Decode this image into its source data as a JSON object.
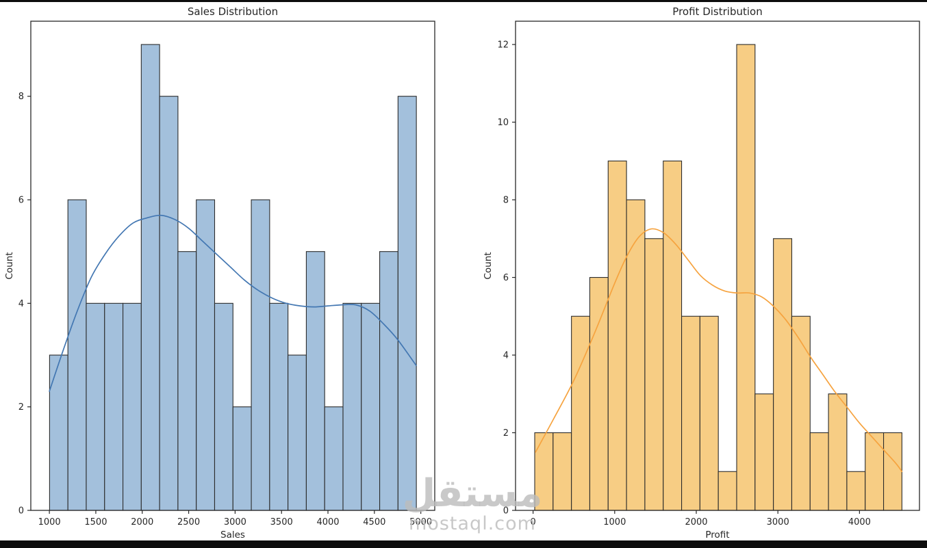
{
  "page": {
    "background": "#ffffff",
    "top_border_color": "#0d0d0d",
    "bottom_border_color": "#0d0d0d",
    "text_color": "#262626",
    "spine_color": "#262626"
  },
  "watermark": {
    "arabic": "مستقل",
    "latin": "mostaql.com",
    "color": "#bbbbbb"
  },
  "chart_data": [
    {
      "type": "bar",
      "subtype": "histogram-with-kde",
      "title": "Sales Distribution",
      "xlabel": "Sales",
      "ylabel": "Count",
      "bar_color": "#a3c0dc",
      "bar_edge_color": "#2b2b2b",
      "kde_color": "#4377b2",
      "bin_start": 1002,
      "bin_width": 197.5,
      "counts": [
        3,
        6,
        4,
        4,
        4,
        9,
        8,
        5,
        6,
        4,
        2,
        6,
        4,
        3,
        5,
        2,
        4,
        4,
        5,
        8
      ],
      "kde_points": [
        [
          1000,
          2.3
        ],
        [
          1150,
          3.1
        ],
        [
          1300,
          3.85
        ],
        [
          1450,
          4.5
        ],
        [
          1600,
          4.95
        ],
        [
          1750,
          5.3
        ],
        [
          1900,
          5.55
        ],
        [
          2050,
          5.65
        ],
        [
          2200,
          5.7
        ],
        [
          2350,
          5.62
        ],
        [
          2500,
          5.45
        ],
        [
          2650,
          5.2
        ],
        [
          2800,
          4.95
        ],
        [
          2950,
          4.7
        ],
        [
          3100,
          4.45
        ],
        [
          3250,
          4.25
        ],
        [
          3400,
          4.1
        ],
        [
          3550,
          4.0
        ],
        [
          3700,
          3.95
        ],
        [
          3850,
          3.93
        ],
        [
          4000,
          3.95
        ],
        [
          4150,
          3.97
        ],
        [
          4300,
          3.97
        ],
        [
          4450,
          3.85
        ],
        [
          4600,
          3.6
        ],
        [
          4750,
          3.3
        ],
        [
          4950,
          2.8
        ]
      ],
      "xlim": [
        800,
        5150
      ],
      "ylim": [
        0,
        9.45
      ],
      "xticks": [
        1000,
        1500,
        2000,
        2500,
        3000,
        3500,
        4000,
        4500,
        5000
      ],
      "yticks": [
        0,
        2,
        4,
        6,
        8
      ],
      "grid": false,
      "legend": null
    },
    {
      "type": "bar",
      "subtype": "histogram-with-kde",
      "title": "Profit Distribution",
      "xlabel": "Profit",
      "ylabel": "Count",
      "bar_color": "#f7cd84",
      "bar_edge_color": "#2b2b2b",
      "kde_color": "#f6a33f",
      "bin_start": 20,
      "bin_width": 225,
      "counts": [
        2,
        2,
        5,
        6,
        9,
        8,
        7,
        9,
        5,
        5,
        1,
        12,
        3,
        7,
        5,
        2,
        3,
        1,
        2,
        2
      ],
      "kde_points": [
        [
          30,
          1.5
        ],
        [
          250,
          2.35
        ],
        [
          500,
          3.35
        ],
        [
          750,
          4.55
        ],
        [
          1000,
          5.85
        ],
        [
          1150,
          6.55
        ],
        [
          1300,
          7.05
        ],
        [
          1450,
          7.25
        ],
        [
          1600,
          7.15
        ],
        [
          1750,
          6.85
        ],
        [
          1900,
          6.45
        ],
        [
          2050,
          6.05
        ],
        [
          2200,
          5.8
        ],
        [
          2350,
          5.65
        ],
        [
          2500,
          5.6
        ],
        [
          2650,
          5.6
        ],
        [
          2800,
          5.5
        ],
        [
          2950,
          5.25
        ],
        [
          3100,
          4.9
        ],
        [
          3250,
          4.45
        ],
        [
          3400,
          3.95
        ],
        [
          3550,
          3.5
        ],
        [
          3700,
          3.05
        ],
        [
          3850,
          2.65
        ],
        [
          4000,
          2.25
        ],
        [
          4150,
          1.9
        ],
        [
          4300,
          1.55
        ],
        [
          4450,
          1.2
        ],
        [
          4520,
          1.0
        ]
      ],
      "xlim": [
        -215,
        4735
      ],
      "ylim": [
        0,
        12.6
      ],
      "xticks": [
        0,
        1000,
        2000,
        3000,
        4000
      ],
      "yticks": [
        0,
        2,
        4,
        6,
        8,
        10,
        12
      ],
      "grid": false,
      "legend": null
    }
  ]
}
